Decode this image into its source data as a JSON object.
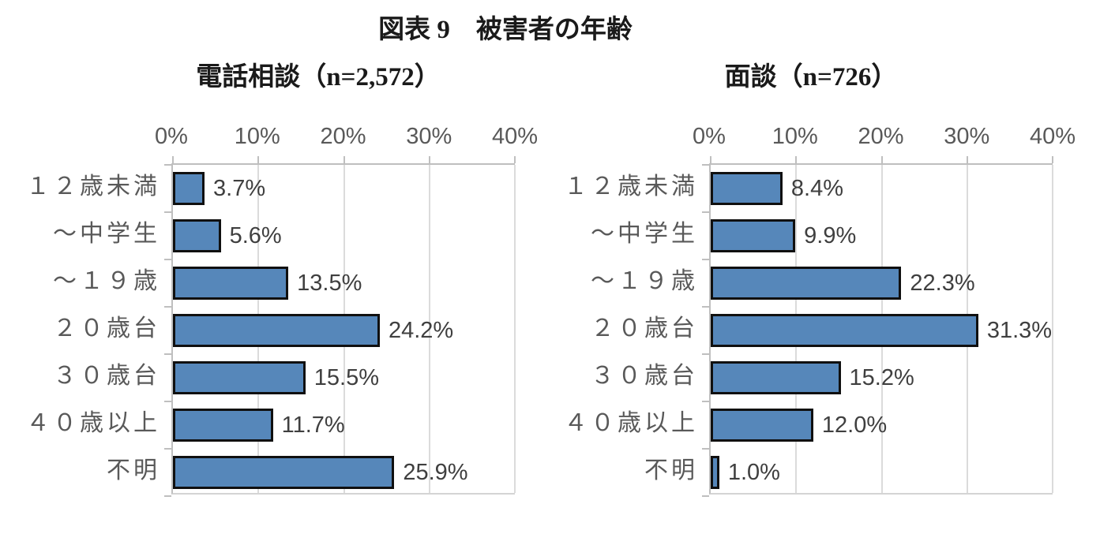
{
  "title": "図表 9　被害者の年齢",
  "chart_data": [
    {
      "type": "bar",
      "orientation": "horizontal",
      "title": "電話相談（n=2,572）",
      "categories": [
        "１２歳未満",
        "～中学生",
        "～１９歳",
        "２０歳台",
        "３０歳台",
        "４０歳以上",
        "不明"
      ],
      "values": [
        3.7,
        5.6,
        13.5,
        24.2,
        15.5,
        11.7,
        25.9
      ],
      "labels": [
        "3.7%",
        "5.6%",
        "13.5%",
        "24.2%",
        "15.5%",
        "11.7%",
        "25.9%"
      ],
      "x_ticks": [
        "0%",
        "10%",
        "20%",
        "30%",
        "40%"
      ],
      "xlim": [
        0,
        40
      ],
      "grid": true,
      "bar_color": "#5687BA",
      "bar_border": "#101010"
    },
    {
      "type": "bar",
      "orientation": "horizontal",
      "title": "面談（n=726）",
      "categories": [
        "１２歳未満",
        "～中学生",
        "～１９歳",
        "２０歳台",
        "３０歳台",
        "４０歳以上",
        "不明"
      ],
      "values": [
        8.4,
        9.9,
        22.3,
        31.3,
        15.2,
        12.0,
        1.0
      ],
      "labels": [
        "8.4%",
        "9.9%",
        "22.3%",
        "31.3%",
        "15.2%",
        "12.0%",
        "1.0%"
      ],
      "x_ticks": [
        "0%",
        "10%",
        "20%",
        "30%",
        "40%"
      ],
      "xlim": [
        0,
        40
      ],
      "grid": true,
      "bar_color": "#5687BA",
      "bar_border": "#101010"
    }
  ],
  "colors": {
    "bar_fill": "#5687BA",
    "bar_border": "#101010",
    "axis_line": "#BFBFBF",
    "gridline": "#DBDBDB",
    "tick_label": "#595959",
    "category_label": "#595959",
    "value_label": "#3f3f3f",
    "title_text": "#1a1a1a"
  }
}
